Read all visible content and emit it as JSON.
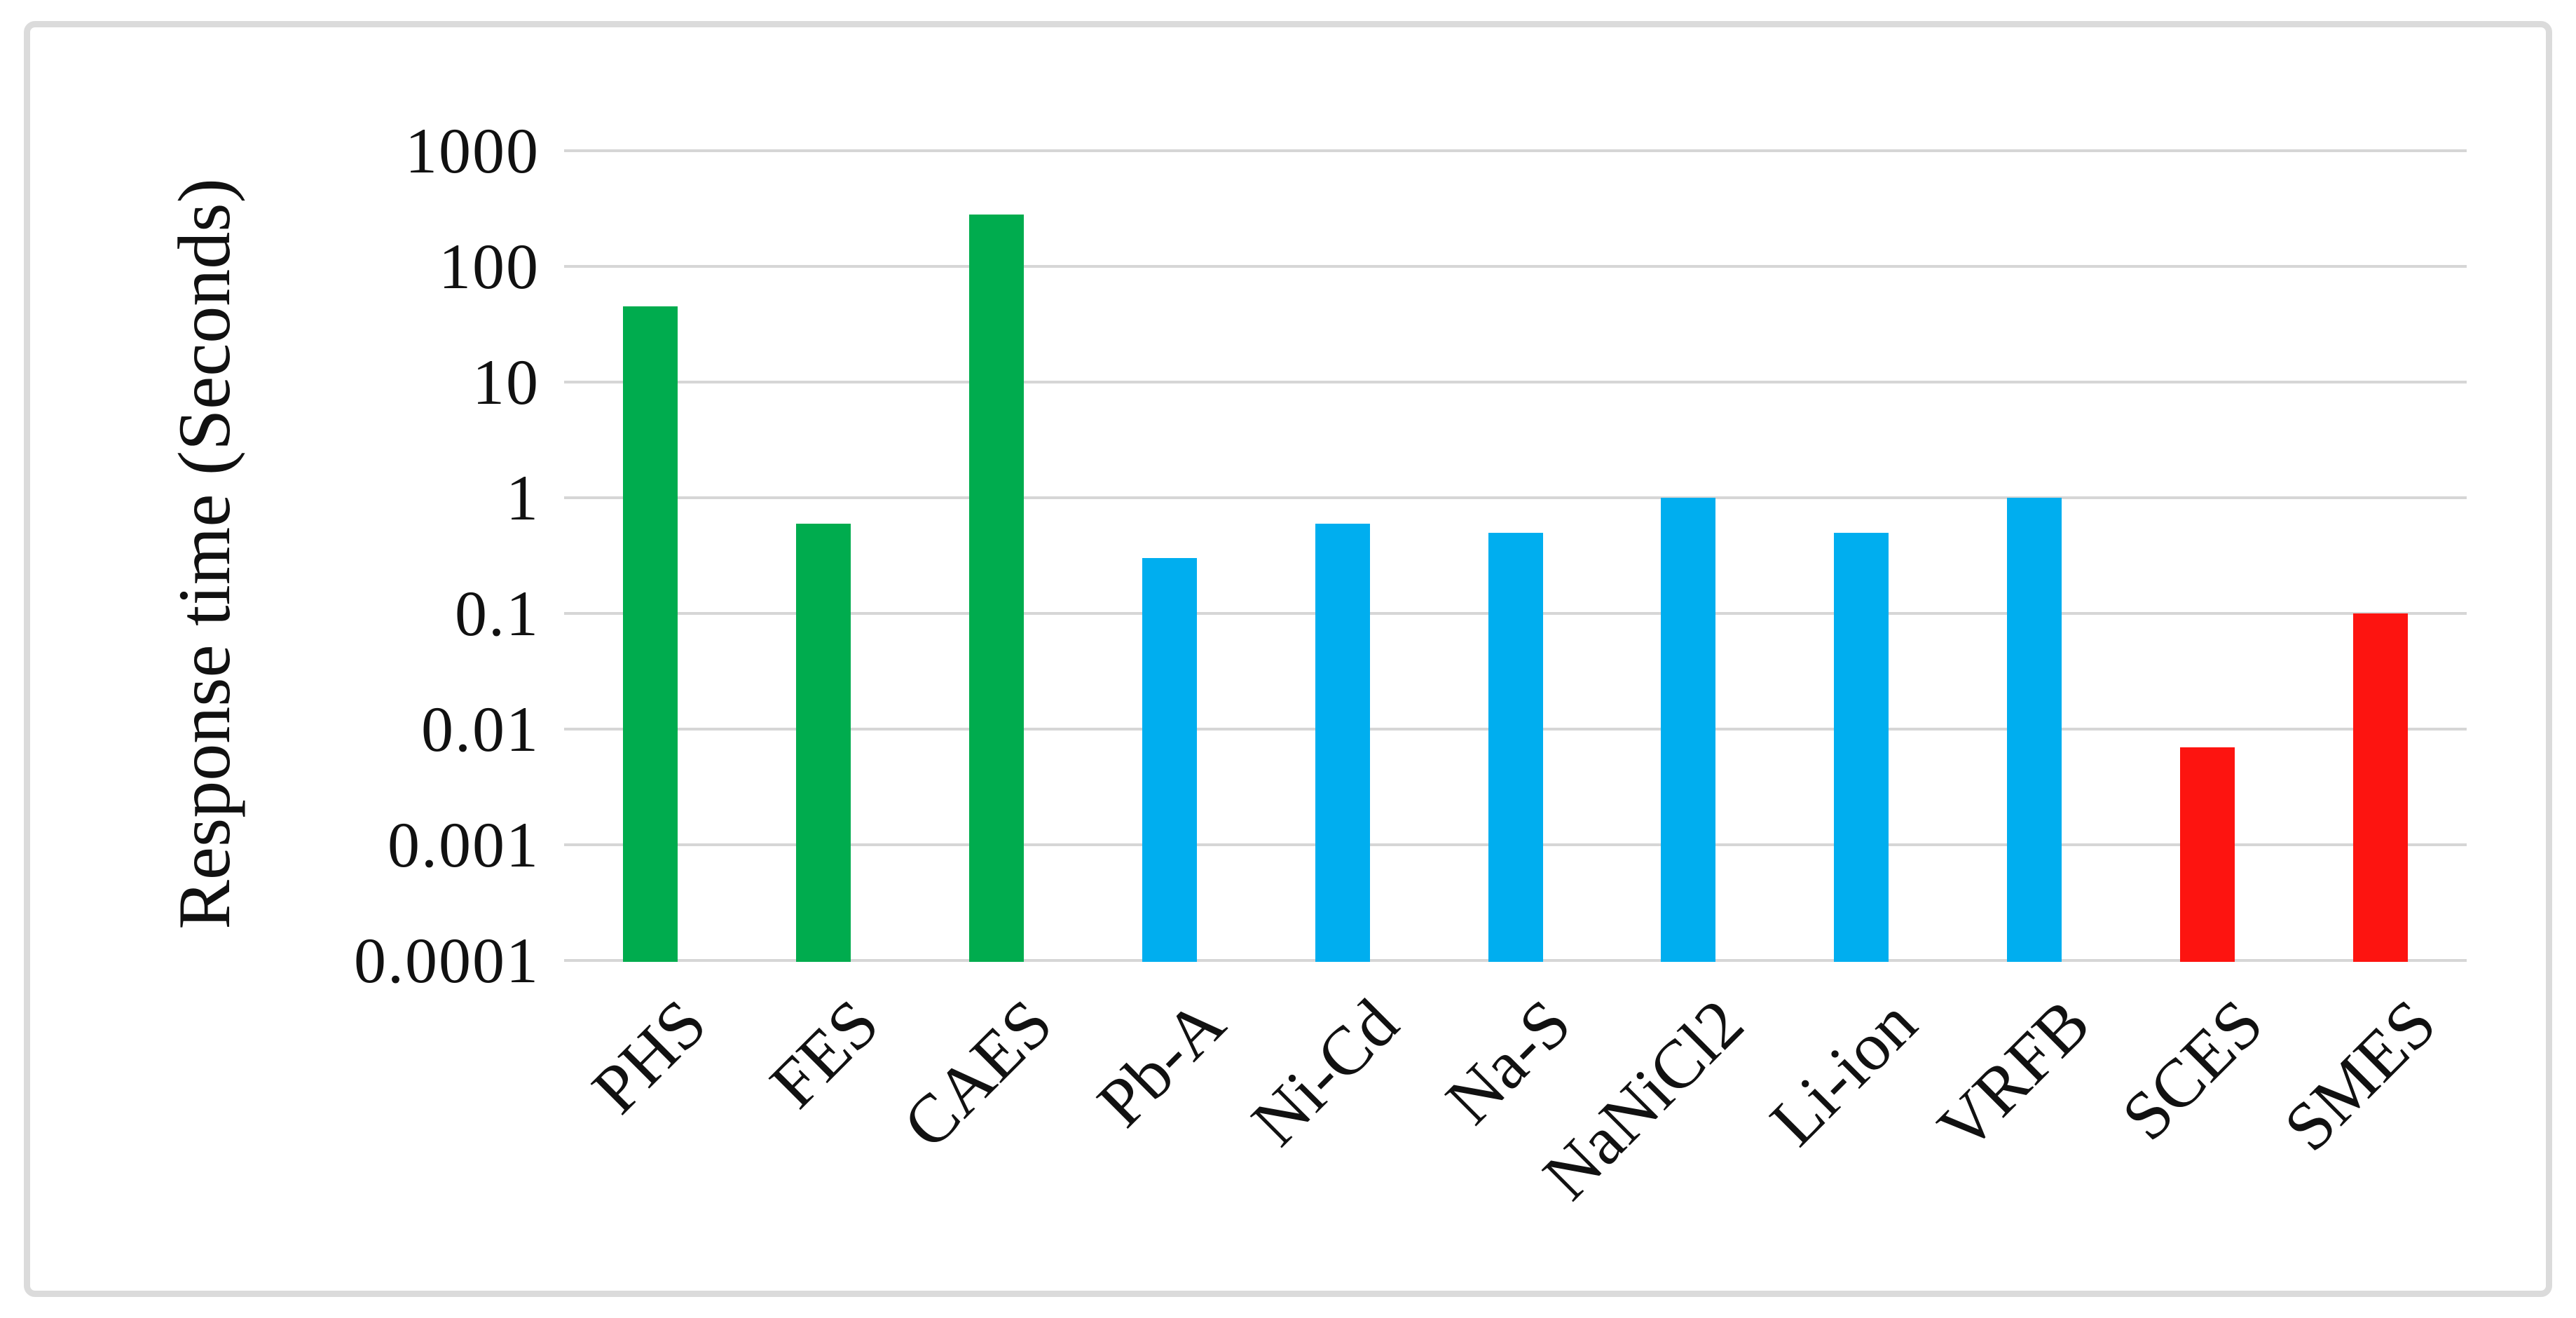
{
  "figure": {
    "background": "#FFFFFF",
    "border_color": "#DBDBDB"
  },
  "chart_data": {
    "type": "bar",
    "title": "",
    "xlabel": "",
    "ylabel": "Response time (Seconds)",
    "y_scale": "log",
    "ylim": [
      0.0001,
      1000
    ],
    "y_tick_labels": [
      "1000",
      "100",
      "10",
      "1",
      "0.1",
      "0.01",
      "0.001",
      "0.0001"
    ],
    "y_tick_values": [
      1000,
      100,
      10,
      1,
      0.1,
      0.01,
      0.001,
      0.0001
    ],
    "categories": [
      "PHS",
      "FES",
      "CAES",
      "Pb-A",
      "Ni-Cd",
      "Na-S",
      "NaNiCl2",
      "Li-ion",
      "VRFB",
      "SCES",
      "SMES"
    ],
    "values": [
      45,
      0.6,
      280,
      0.3,
      0.6,
      0.5,
      1,
      0.5,
      1,
      0.007,
      0.1
    ],
    "bar_colors": [
      "#00AC4E",
      "#00AC4E",
      "#00AC4E",
      "#00AEEF",
      "#00AEEF",
      "#00AEEF",
      "#00AEEF",
      "#00AEEF",
      "#00AEEF",
      "#FD1410",
      "#FD1410"
    ],
    "gridline_color": "#D6D6D6",
    "grid": "horizontal",
    "legend": "none",
    "baseline": 0.0001
  }
}
